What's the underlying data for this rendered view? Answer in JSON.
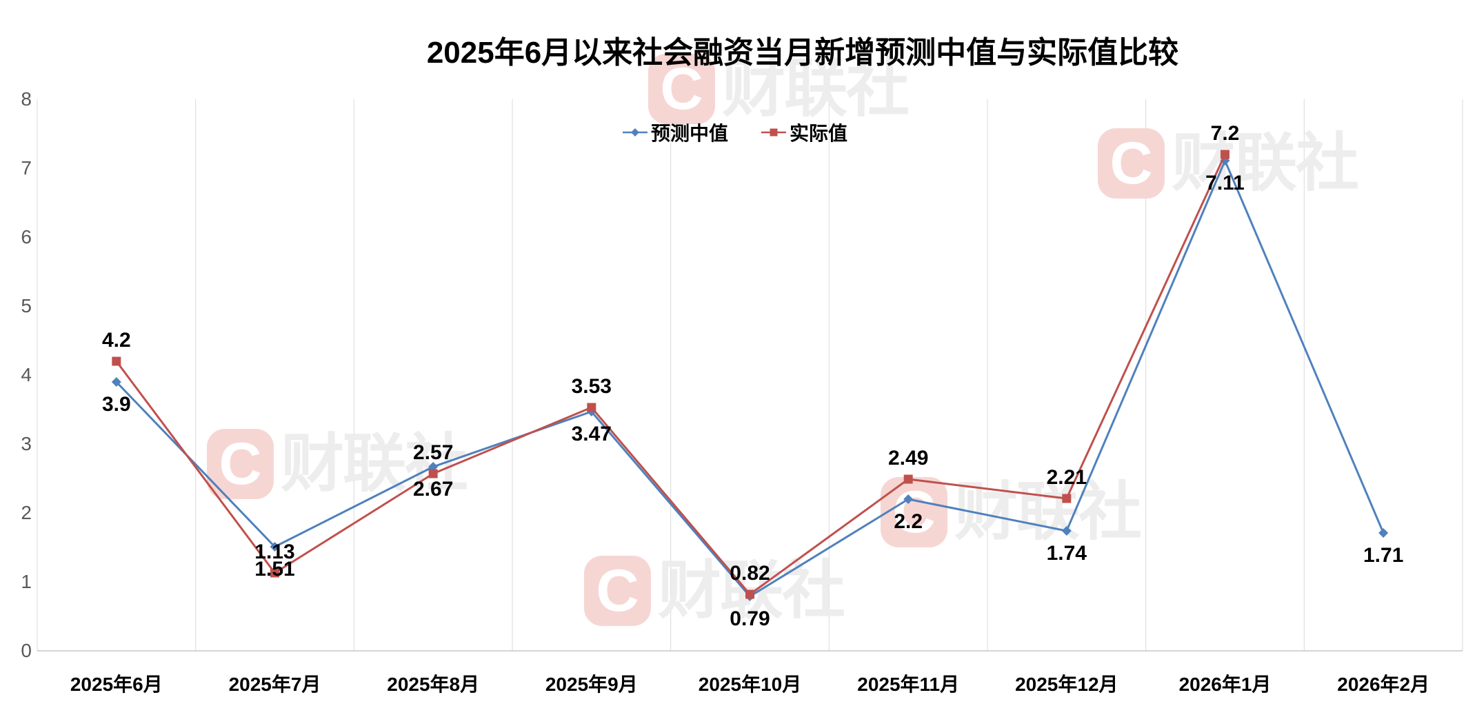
{
  "title": "2025年6月以来社会融资当月新增预测中值与实际值比较",
  "legend": {
    "items": [
      "预测中值",
      "实际值"
    ]
  },
  "chart_data": {
    "type": "line",
    "title": "2025年6月以来社会融资当月新增预测中值与实际值比较",
    "categories": [
      "2025年6月",
      "2025年7月",
      "2025年8月",
      "2025年9月",
      "2025年10月",
      "2025年11月",
      "2025年12月",
      "2026年1月",
      "2026年2月"
    ],
    "series": [
      {
        "name": "预测中值",
        "color": "#4F81BD",
        "marker": "diamond",
        "label_position": "below",
        "values": [
          3.9,
          1.51,
          2.67,
          3.47,
          0.79,
          2.2,
          1.74,
          7.11,
          1.71
        ],
        "labels": [
          "3.9",
          "1.51",
          "2.67",
          "3.47",
          "0.79",
          "2.2",
          "1.74",
          "7.11",
          "1.71"
        ]
      },
      {
        "name": "实际值",
        "color": "#C0504D",
        "marker": "square",
        "label_position": "above",
        "values": [
          4.2,
          1.13,
          2.57,
          3.53,
          0.82,
          2.49,
          2.21,
          7.2,
          null
        ],
        "labels": [
          "4.2",
          "1.13",
          "2.57",
          "3.53",
          "0.82",
          "2.49",
          "2.21",
          "7.2",
          null
        ]
      }
    ],
    "ylim": [
      0,
      8
    ],
    "yticks": [
      0,
      1,
      2,
      3,
      4,
      5,
      6,
      7,
      8
    ],
    "grid": "vertical",
    "legend_position": "top-center"
  },
  "watermark": {
    "logo_letter": "C",
    "brand_text": "财联社",
    "logo_bg": "#F6D6D3",
    "logo_fg": "#FFFFFF",
    "text_color": "#EDEDED"
  },
  "colors": {
    "axis_text": "#595959",
    "gridline": "#D9D9D9",
    "axis_line": "#C6C6C6",
    "data_label_text": "#000000"
  }
}
